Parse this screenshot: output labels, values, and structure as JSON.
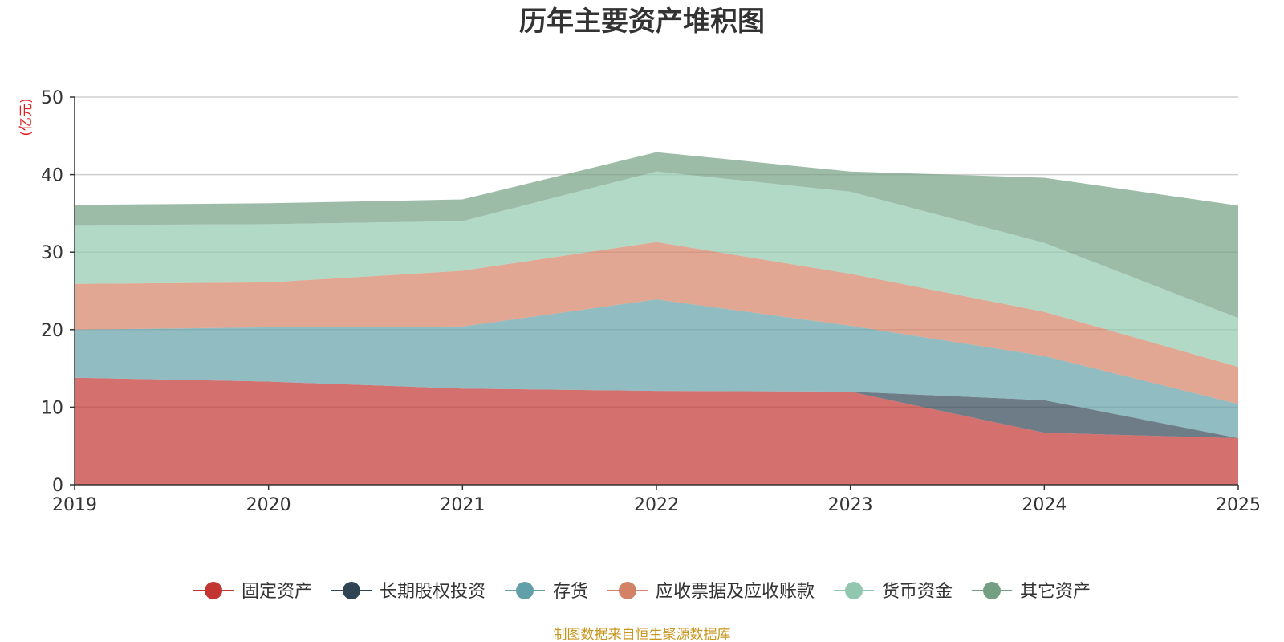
{
  "chart_data": {
    "type": "area",
    "stacked": true,
    "title": "历年主要资产堆积图",
    "unit_label": "(亿元)",
    "source": "制图数据来自恒生聚源数据库",
    "categories": [
      "2019",
      "2020",
      "2021",
      "2022",
      "2023",
      "2024",
      "2025"
    ],
    "ylim": [
      0,
      50
    ],
    "yticks": [
      0,
      10,
      20,
      30,
      40,
      50
    ],
    "grid": true,
    "legend_position": "bottom",
    "series": [
      {
        "name": "固定资产",
        "color": "#c23531",
        "values": [
          13.8,
          13.3,
          12.4,
          12.1,
          12.0,
          6.7,
          6.0
        ]
      },
      {
        "name": "长期股权投资",
        "color": "#2f4554",
        "values": [
          0.0,
          0.0,
          0.0,
          0.0,
          0.0,
          4.2,
          0.0
        ]
      },
      {
        "name": "存货",
        "color": "#61a0a8",
        "values": [
          6.2,
          7.0,
          8.0,
          11.8,
          8.5,
          5.7,
          4.4
        ]
      },
      {
        "name": "应收票据及应收账款",
        "color": "#d48265",
        "values": [
          5.9,
          5.8,
          7.2,
          7.4,
          6.7,
          5.7,
          4.8
        ]
      },
      {
        "name": "货币资金",
        "color": "#91c7ae",
        "values": [
          7.6,
          7.5,
          6.4,
          9.1,
          10.6,
          8.9,
          6.3
        ]
      },
      {
        "name": "其它资产",
        "color": "#749f83",
        "values": [
          2.6,
          2.7,
          2.8,
          2.5,
          2.6,
          8.4,
          14.5
        ]
      }
    ]
  }
}
